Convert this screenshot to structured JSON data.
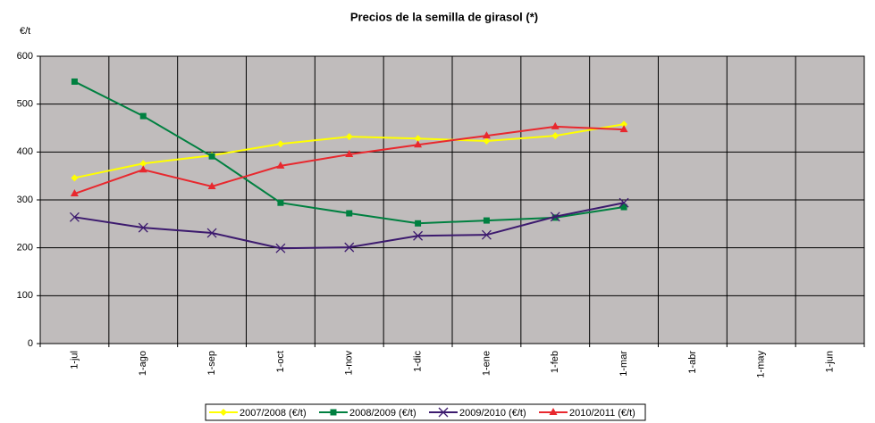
{
  "chart_data": {
    "type": "line",
    "title": "Precios de la semilla de girasol (*)",
    "y_label": "€/t",
    "categories": [
      "1-jul",
      "1-ago",
      "1-sep",
      "1-oct",
      "1-nov",
      "1-dic",
      "1-ene",
      "1-feb",
      "1-mar",
      "1-abr",
      "1-may",
      "1-jun"
    ],
    "series": [
      {
        "name": "2007/2008 (€/t)",
        "color": "#ffff00",
        "marker": "diamond",
        "values": [
          346,
          376,
          393,
          417,
          432,
          428,
          423,
          434,
          458,
          null,
          null,
          null
        ]
      },
      {
        "name": "2008/2009 (€/t)",
        "color": "#008040",
        "marker": "square",
        "values": [
          547,
          475,
          391,
          294,
          272,
          251,
          257,
          263,
          285,
          null,
          null,
          null
        ]
      },
      {
        "name": "2009/2010 (€/t)",
        "color": "#3c1a6e",
        "marker": "x",
        "values": [
          264,
          242,
          231,
          199,
          201,
          225,
          227,
          265,
          294,
          null,
          null,
          null
        ]
      },
      {
        "name": "2010/2011 (€/t)",
        "color": "#e8282e",
        "marker": "triangle",
        "values": [
          313,
          363,
          328,
          371,
          395,
          415,
          434,
          453,
          447,
          null,
          null,
          null
        ]
      }
    ],
    "ylim": [
      0,
      600
    ],
    "yticks": [
      0,
      100,
      200,
      300,
      400,
      500,
      600
    ],
    "grid": true,
    "legend": "bottom"
  }
}
